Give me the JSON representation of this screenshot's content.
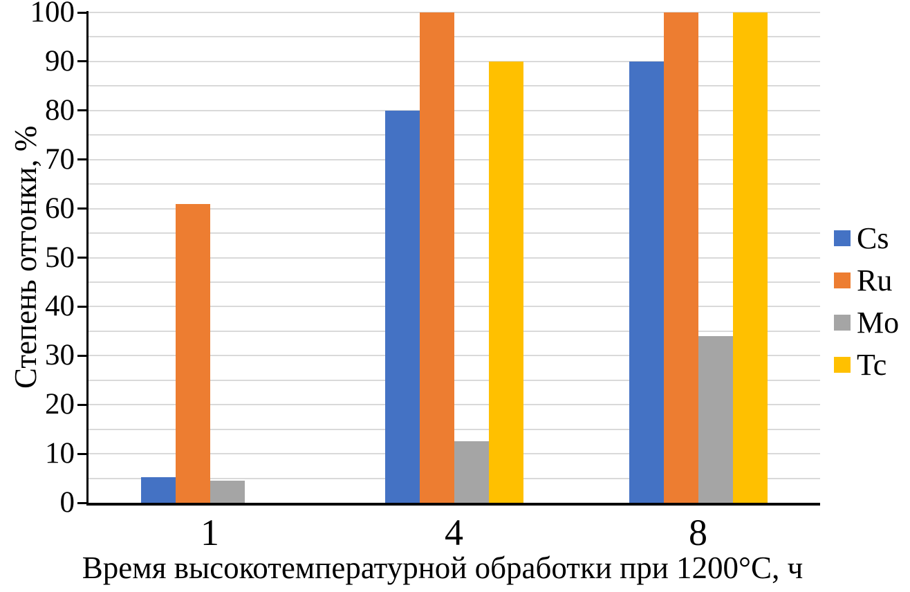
{
  "chart_data": {
    "type": "bar",
    "title": "",
    "categories": [
      "1",
      "4",
      "8"
    ],
    "series": [
      {
        "name": "Cs",
        "color": "#4472C4",
        "values": [
          5.2,
          80,
          90
        ]
      },
      {
        "name": "Ru",
        "color": "#ED7D31",
        "values": [
          61,
          100,
          100
        ]
      },
      {
        "name": "Mo",
        "color": "#A5A5A5",
        "values": [
          4.5,
          12.5,
          34
        ]
      },
      {
        "name": "Tc",
        "color": "#FFC000",
        "values": [
          0,
          90,
          100
        ]
      }
    ],
    "xlabel": "Время высокотемпературной обработки при 1200°C, ч",
    "ylabel": "Степень отгонки, %",
    "ylim": [
      0,
      100
    ],
    "yticks": [
      0,
      10,
      20,
      30,
      40,
      50,
      60,
      70,
      80,
      90,
      100
    ],
    "gridline_step": 5,
    "grid": true,
    "legend": [
      "Cs",
      "Ru",
      "Mo",
      "Tc"
    ],
    "legend_position": "right",
    "colors": {
      "background": "#FFFFFF",
      "gridline": "#D9D9D9",
      "axis": "#000000",
      "text": "#000000"
    }
  }
}
